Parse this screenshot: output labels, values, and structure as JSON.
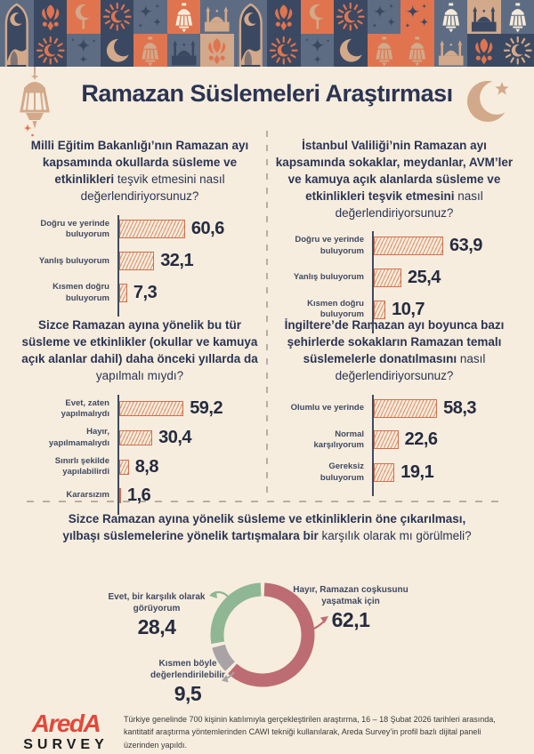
{
  "title": "Ramazan Süslemeleri Araştırması",
  "colors": {
    "background": "#f6edde",
    "heading_text": "#2b3453",
    "label_text": "#414961",
    "value_text": "#262b3f",
    "axis": "#3f4a60",
    "bar_border": "#d06f4e",
    "bar_hatch": "#e09a76",
    "divider": "#b7afa1",
    "logo_red": "#e2493b",
    "donut_rose": "#bd6c74",
    "donut_grey": "#a9a3a6",
    "donut_green": "#8fb794",
    "palette": {
      "navy": "#3b4861",
      "slate": "#5d6c83",
      "orange": "#df744f",
      "tan": "#d2a98a",
      "cream": "#f4ead9"
    }
  },
  "border_tiles": [
    {
      "full": {
        "bg": "slate",
        "icon": "arch-mosque",
        "fg": "tan"
      }
    },
    {
      "top": {
        "bg": "navy",
        "icon": "tulip-lamp",
        "fg": "orange"
      },
      "bottom": {
        "bg": "navy",
        "icon": "burst-moon",
        "fg": "orange"
      }
    },
    {
      "top": {
        "bg": "orange",
        "icon": "moon-pole",
        "fg": "tan"
      },
      "bottom": {
        "bg": "slate",
        "icon": "diamonds",
        "fg": "navy"
      }
    },
    {
      "top": {
        "bg": "navy",
        "icon": "burst-moon",
        "fg": "orange"
      },
      "bottom": {
        "bg": "navy",
        "icon": "big-moon",
        "fg": "tan"
      }
    },
    {
      "top": {
        "bg": "slate",
        "icon": "sparkles",
        "fg": "navy"
      },
      "bottom": {
        "bg": "orange",
        "icon": "lantern",
        "fg": "tan"
      }
    },
    {
      "top": {
        "bg": "orange",
        "icon": "lantern",
        "fg": "cream"
      },
      "bottom": {
        "bg": "slate",
        "icon": "mosque",
        "fg": "navy"
      }
    },
    {
      "top": {
        "bg": "slate",
        "icon": "mosque",
        "fg": "tan"
      },
      "bottom": {
        "bg": "tan",
        "icon": "tulip-lamp",
        "fg": "orange"
      }
    },
    {
      "full": {
        "bg": "slate",
        "icon": "arch-mosque",
        "fg": "tan"
      }
    },
    {
      "top": {
        "bg": "navy",
        "icon": "tulip-lamp",
        "fg": "orange"
      },
      "bottom": {
        "bg": "navy",
        "icon": "burst-moon",
        "fg": "orange"
      }
    },
    {
      "top": {
        "bg": "orange",
        "icon": "moon-pole",
        "fg": "tan"
      },
      "bottom": {
        "bg": "slate",
        "icon": "diamonds",
        "fg": "navy"
      }
    },
    {
      "top": {
        "bg": "navy",
        "icon": "burst-moon",
        "fg": "orange"
      },
      "bottom": {
        "bg": "navy",
        "icon": "big-moon",
        "fg": "tan"
      }
    },
    {
      "top": {
        "bg": "slate",
        "icon": "sparkles",
        "fg": "navy"
      },
      "bottom": {
        "bg": "orange",
        "icon": "lantern",
        "fg": "tan"
      }
    },
    {
      "top": {
        "bg": "orange",
        "icon": "sparkles",
        "fg": "navy"
      },
      "bottom": {
        "bg": "orange",
        "icon": "lantern",
        "fg": "tan"
      }
    },
    {
      "top": {
        "bg": "slate",
        "icon": "lantern",
        "fg": "cream"
      },
      "bottom": {
        "bg": "slate",
        "icon": "mosque",
        "fg": "tan"
      }
    },
    {
      "top": {
        "bg": "tan",
        "icon": "mosque",
        "fg": "navy"
      },
      "bottom": {
        "bg": "navy",
        "icon": "tulip-lamp",
        "fg": "orange"
      }
    },
    {
      "top": {
        "bg": "slate",
        "icon": "lantern",
        "fg": "cream"
      },
      "bottom": {
        "bg": "navy",
        "icon": "burst-moon",
        "fg": "tan"
      }
    }
  ],
  "chart_data": [
    {
      "type": "bar",
      "orientation": "horizontal",
      "title_bold": "Milli Eğitim Bakanlığı’nın Ramazan ayı kapsamında okullarda süsleme ve etkinlikleri",
      "title_regular": "teşvik etmesini nasıl değerlendiriyorsunuz?",
      "categories": [
        "Doğru ve yerinde buluyorum",
        "Yanlış buluyorum",
        "Kısmen doğru buluyorum"
      ],
      "values": [
        60.6,
        32.1,
        7.3
      ],
      "value_labels": [
        "60,6",
        "32,1",
        "7,3"
      ],
      "xlim": [
        0,
        70
      ],
      "grid": false
    },
    {
      "type": "bar",
      "orientation": "horizontal",
      "title_bold": "İstanbul Valiliği’nin Ramazan ayı kapsamında sokaklar, meydanlar, AVM’ler ve kamuya açık alanlarda süsleme ve etkinlikleri teşvik etmesini",
      "title_regular": "nasıl değerlendiriyorsunuz?",
      "categories": [
        "Doğru ve yerinde buluyorum",
        "Yanlış buluyorum",
        "Kısmen doğru buluyorum"
      ],
      "values": [
        63.9,
        25.4,
        10.7
      ],
      "value_labels": [
        "63,9",
        "25,4",
        "10,7"
      ],
      "xlim": [
        0,
        70
      ],
      "grid": false
    },
    {
      "type": "bar",
      "orientation": "horizontal",
      "title_bold": "Sizce Ramazan ayına yönelik bu tür süsleme ve etkinlikler (okullar ve kamuya açık alanlar dahil) daha önceki yıllarda da",
      "title_regular": "yapılmalı mıydı?",
      "categories": [
        "Evet, zaten yapılmalıydı",
        "Hayır, yapılmamalıydı",
        "Sınırlı şekilde yapılabilirdi",
        "Kararsızım"
      ],
      "values": [
        59.2,
        30.4,
        8.8,
        1.6
      ],
      "value_labels": [
        "59,2",
        "30,4",
        "8,8",
        "1,6"
      ],
      "xlim": [
        0,
        70
      ],
      "grid": false
    },
    {
      "type": "bar",
      "orientation": "horizontal",
      "title_bold": "İngiltere’de Ramazan ayı boyunca bazı şehirlerde sokakların Ramazan temalı süslemelerle donatılmasını",
      "title_regular": "nasıl değerlendiriyorsunuz?",
      "categories": [
        "Olumlu ve yerinde",
        "Normal karşılıyorum",
        "Gereksiz buluyorum"
      ],
      "values": [
        58.3,
        22.6,
        19.1
      ],
      "value_labels": [
        "58,3",
        "22,6",
        "19,1"
      ],
      "xlim": [
        0,
        70
      ],
      "grid": false
    },
    {
      "type": "donut",
      "title_bold": "Sizce Ramazan ayına yönelik süsleme ve etkinliklerin öne çıkarılması, yılbaşı süslemelerine yönelik tartışmalara bir",
      "title_regular": "karşılık olarak mı görülmeli?",
      "labels": [
        "Hayır, Ramazan coşkusunu yaşatmak için",
        "Kısmen böyle değerlendirilebilir",
        "Evet, bir karşılık olarak görüyorum"
      ],
      "values": [
        62.1,
        9.5,
        28.4
      ],
      "value_labels": [
        "62,1",
        "9,5",
        "28,4"
      ],
      "colors": [
        "#bd6c74",
        "#a9a3a6",
        "#8fb794"
      ],
      "start_angle": "top",
      "direction": "clockwise"
    }
  ],
  "footer": {
    "logo_line1": "AredA",
    "logo_line2": "SURVEY",
    "text": "Türkiye genelinde 700 kişinin katılımıyla gerçekleştirilen araştırma, 16 – 18 Şubat 2026 tarihleri arasında, kantitatif araştırma yöntemlerinden CAWI tekniği kullanılarak, Areda Survey’in profil bazlı dijital paneli üzerinden yapıldı."
  }
}
